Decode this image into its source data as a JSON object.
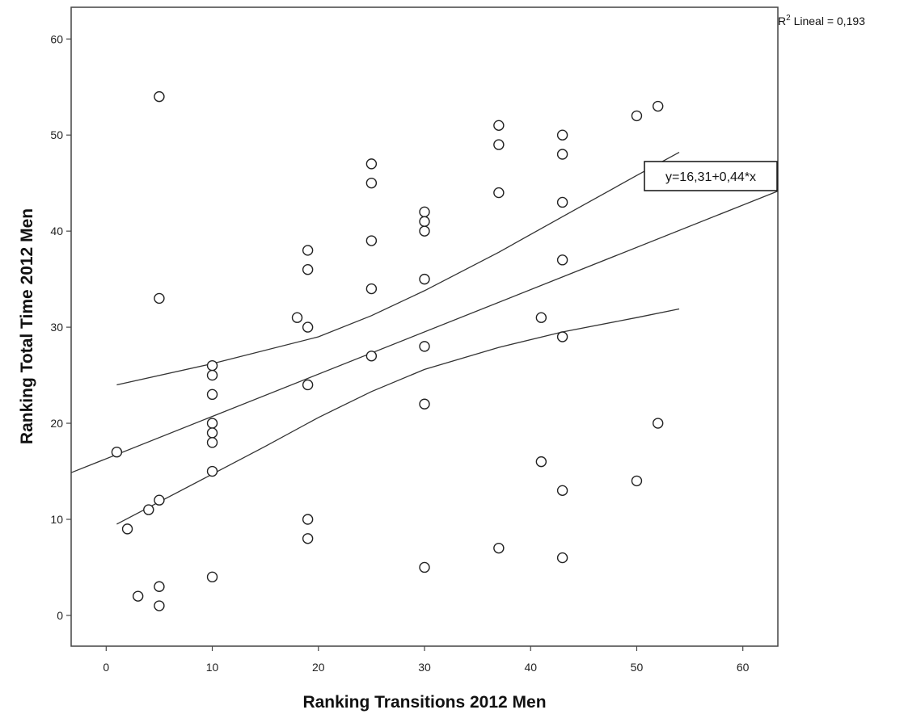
{
  "chart_data": {
    "type": "scatter",
    "xlabel": "Ranking Transitions 2012 Men",
    "ylabel": "Ranking Total Time 2012 Men",
    "xlim": [
      -3.3,
      63.3
    ],
    "ylim": [
      -3.2,
      63.3
    ],
    "xticks": [
      0,
      10,
      20,
      30,
      40,
      50,
      60
    ],
    "yticks": [
      0,
      10,
      20,
      30,
      40,
      50,
      60
    ],
    "xtick_labels": [
      "0",
      "10",
      "20",
      "30",
      "40",
      "50",
      "60"
    ],
    "ytick_labels": [
      "0",
      "10",
      "20",
      "30",
      "40",
      "50",
      "60"
    ],
    "r2_label": {
      "prefix": "R",
      "sup": "2",
      "rest": " Lineal = 0,193"
    },
    "equation_label": "y=16,31+0,44*x",
    "fit": {
      "intercept": 16.31,
      "slope": 0.44
    },
    "ci_upper": [
      [
        1,
        24.0
      ],
      [
        10,
        26.2
      ],
      [
        20,
        29.0
      ],
      [
        25,
        31.2
      ],
      [
        30,
        33.8
      ],
      [
        37,
        37.8
      ],
      [
        43,
        41.5
      ],
      [
        50,
        45.8
      ],
      [
        54,
        48.2
      ]
    ],
    "ci_lower": [
      [
        1,
        9.5
      ],
      [
        10,
        14.7
      ],
      [
        15,
        17.6
      ],
      [
        20,
        20.6
      ],
      [
        25,
        23.3
      ],
      [
        30,
        25.6
      ],
      [
        37,
        27.9
      ],
      [
        43,
        29.5
      ],
      [
        50,
        31.0
      ],
      [
        54,
        31.9
      ]
    ],
    "grid": false,
    "points": [
      [
        5,
        54
      ],
      [
        5,
        33
      ],
      [
        1,
        17
      ],
      [
        2,
        9
      ],
      [
        3,
        2
      ],
      [
        4,
        11
      ],
      [
        5,
        12
      ],
      [
        5,
        3
      ],
      [
        5,
        1
      ],
      [
        10,
        26
      ],
      [
        10,
        25
      ],
      [
        10,
        23
      ],
      [
        10,
        20
      ],
      [
        10,
        19
      ],
      [
        10,
        18
      ],
      [
        10,
        15
      ],
      [
        10,
        4
      ],
      [
        18,
        31
      ],
      [
        19,
        38
      ],
      [
        19,
        36
      ],
      [
        19,
        30
      ],
      [
        19,
        24
      ],
      [
        19,
        10
      ],
      [
        19,
        8
      ],
      [
        25,
        47
      ],
      [
        25,
        45
      ],
      [
        25,
        39
      ],
      [
        25,
        34
      ],
      [
        25,
        27
      ],
      [
        30,
        42
      ],
      [
        30,
        41
      ],
      [
        30,
        40
      ],
      [
        30,
        35
      ],
      [
        30,
        28
      ],
      [
        30,
        22
      ],
      [
        30,
        5
      ],
      [
        37,
        51
      ],
      [
        37,
        49
      ],
      [
        37,
        44
      ],
      [
        37,
        7
      ],
      [
        41,
        31
      ],
      [
        41,
        16
      ],
      [
        43,
        50
      ],
      [
        43,
        48
      ],
      [
        43,
        43
      ],
      [
        43,
        37
      ],
      [
        43,
        29
      ],
      [
        43,
        13
      ],
      [
        43,
        6
      ],
      [
        50,
        52
      ],
      [
        50,
        14
      ],
      [
        52,
        53
      ],
      [
        52,
        20
      ]
    ]
  }
}
